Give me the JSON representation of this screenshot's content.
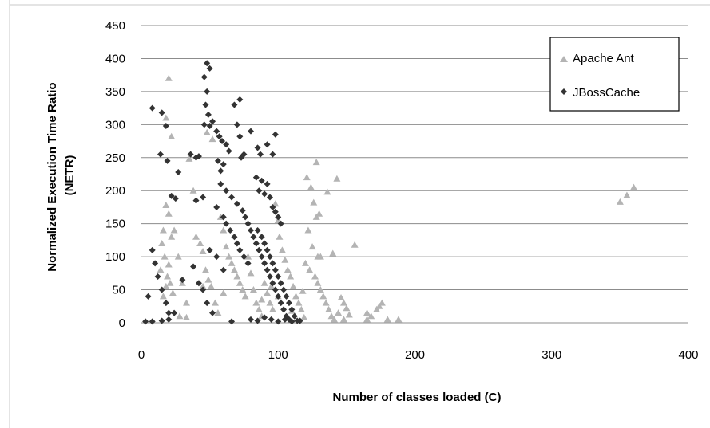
{
  "chart_data": {
    "type": "scatter",
    "title": "",
    "xlabel": "Number of classes  loaded (C)",
    "ylabel": "Normalized Execution Time Ratio (NETR)",
    "ylabel_lines": [
      "Normalized Execution Time Ratio",
      "(NETR)"
    ],
    "xlim": [
      0,
      400
    ],
    "ylim": [
      0,
      450
    ],
    "x_ticks": [
      "0",
      "100",
      "200",
      "300",
      "400"
    ],
    "y_ticks": [
      "0",
      "50",
      "100",
      "150",
      "200",
      "250",
      "300",
      "350",
      "400",
      "450"
    ],
    "grid": "horizontal",
    "legend_position": "top-right",
    "series": [
      {
        "name": "Apache Ant",
        "marker": "triangle",
        "color": "#b4b4b4",
        "points": [
          [
            20,
            370
          ],
          [
            18,
            310
          ],
          [
            22,
            282
          ],
          [
            35,
            248
          ],
          [
            38,
            200
          ],
          [
            48,
            288
          ],
          [
            52,
            278
          ],
          [
            18,
            178
          ],
          [
            20,
            165
          ],
          [
            16,
            140
          ],
          [
            22,
            130
          ],
          [
            15,
            120
          ],
          [
            17,
            100
          ],
          [
            20,
            88
          ],
          [
            14,
            80
          ],
          [
            19,
            70
          ],
          [
            21,
            60
          ],
          [
            18,
            55
          ],
          [
            23,
            45
          ],
          [
            16,
            40
          ],
          [
            24,
            140
          ],
          [
            27,
            100
          ],
          [
            30,
            60
          ],
          [
            33,
            30
          ],
          [
            28,
            10
          ],
          [
            33,
            8
          ],
          [
            40,
            130
          ],
          [
            43,
            120
          ],
          [
            45,
            108
          ],
          [
            47,
            80
          ],
          [
            49,
            65
          ],
          [
            51,
            55
          ],
          [
            54,
            30
          ],
          [
            56,
            15
          ],
          [
            58,
            160
          ],
          [
            60,
            140
          ],
          [
            62,
            115
          ],
          [
            64,
            100
          ],
          [
            66,
            90
          ],
          [
            68,
            80
          ],
          [
            70,
            70
          ],
          [
            72,
            60
          ],
          [
            74,
            50
          ],
          [
            76,
            40
          ],
          [
            78,
            100
          ],
          [
            80,
            75
          ],
          [
            82,
            50
          ],
          [
            84,
            30
          ],
          [
            86,
            20
          ],
          [
            88,
            10
          ],
          [
            90,
            60
          ],
          [
            92,
            45
          ],
          [
            94,
            30
          ],
          [
            96,
            20
          ],
          [
            98,
            180
          ],
          [
            100,
            155
          ],
          [
            101,
            130
          ],
          [
            103,
            110
          ],
          [
            105,
            95
          ],
          [
            107,
            80
          ],
          [
            109,
            70
          ],
          [
            111,
            55
          ],
          [
            113,
            40
          ],
          [
            115,
            30
          ],
          [
            117,
            20
          ],
          [
            119,
            8
          ],
          [
            121,
            220
          ],
          [
            124,
            205
          ],
          [
            126,
            182
          ],
          [
            128,
            160
          ],
          [
            122,
            140
          ],
          [
            125,
            115
          ],
          [
            129,
            100
          ],
          [
            120,
            90
          ],
          [
            123,
            80
          ],
          [
            127,
            70
          ],
          [
            129,
            60
          ],
          [
            131,
            50
          ],
          [
            133,
            40
          ],
          [
            135,
            30
          ],
          [
            137,
            20
          ],
          [
            139,
            10
          ],
          [
            141,
            5
          ],
          [
            128,
            243
          ],
          [
            143,
            218
          ],
          [
            136,
            198
          ],
          [
            130,
            165
          ],
          [
            156,
            118
          ],
          [
            140,
            105
          ],
          [
            131,
            100
          ],
          [
            146,
            38
          ],
          [
            148,
            30
          ],
          [
            150,
            22
          ],
          [
            152,
            12
          ],
          [
            148,
            5
          ],
          [
            144,
            15
          ],
          [
            165,
            15
          ],
          [
            168,
            10
          ],
          [
            172,
            20
          ],
          [
            174,
            25
          ],
          [
            176,
            30
          ],
          [
            180,
            5
          ],
          [
            188,
            5
          ],
          [
            165,
            5
          ],
          [
            350,
            183
          ],
          [
            355,
            193
          ],
          [
            360,
            205
          ],
          [
            100,
            40
          ],
          [
            95,
            55
          ],
          [
            60,
            45
          ],
          [
            45,
            55
          ],
          [
            88,
            35
          ],
          [
            110,
            18
          ],
          [
            118,
            48
          ]
        ]
      },
      {
        "name": "JBossCache",
        "marker": "diamond",
        "color": "#333333",
        "points": [
          [
            48,
            393
          ],
          [
            50,
            385
          ],
          [
            46,
            372
          ],
          [
            48,
            350
          ],
          [
            47,
            330
          ],
          [
            49,
            315
          ],
          [
            46,
            300
          ],
          [
            50,
            298
          ],
          [
            52,
            305
          ],
          [
            8,
            325
          ],
          [
            15,
            318
          ],
          [
            18,
            298
          ],
          [
            14,
            255
          ],
          [
            19,
            245
          ],
          [
            27,
            228
          ],
          [
            22,
            192
          ],
          [
            25,
            188
          ],
          [
            42,
            252
          ],
          [
            40,
            250
          ],
          [
            45,
            190
          ],
          [
            55,
            290
          ],
          [
            57,
            282
          ],
          [
            59,
            275
          ],
          [
            62,
            270
          ],
          [
            64,
            260
          ],
          [
            56,
            245
          ],
          [
            60,
            240
          ],
          [
            58,
            230
          ],
          [
            68,
            330
          ],
          [
            72,
            338
          ],
          [
            70,
            300
          ],
          [
            72,
            282
          ],
          [
            75,
            255
          ],
          [
            73,
            250
          ],
          [
            80,
            290
          ],
          [
            85,
            265
          ],
          [
            87,
            255
          ],
          [
            92,
            270
          ],
          [
            98,
            285
          ],
          [
            96,
            255
          ],
          [
            58,
            210
          ],
          [
            62,
            200
          ],
          [
            66,
            190
          ],
          [
            70,
            180
          ],
          [
            74,
            170
          ],
          [
            76,
            160
          ],
          [
            78,
            150
          ],
          [
            80,
            140
          ],
          [
            82,
            130
          ],
          [
            84,
            120
          ],
          [
            86,
            110
          ],
          [
            88,
            100
          ],
          [
            90,
            90
          ],
          [
            92,
            80
          ],
          [
            94,
            70
          ],
          [
            96,
            60
          ],
          [
            98,
            50
          ],
          [
            100,
            40
          ],
          [
            102,
            30
          ],
          [
            104,
            20
          ],
          [
            106,
            10
          ],
          [
            108,
            5
          ],
          [
            84,
            220
          ],
          [
            88,
            215
          ],
          [
            92,
            210
          ],
          [
            86,
            200
          ],
          [
            90,
            195
          ],
          [
            94,
            190
          ],
          [
            96,
            175
          ],
          [
            98,
            168
          ],
          [
            100,
            160
          ],
          [
            102,
            150
          ],
          [
            85,
            140
          ],
          [
            88,
            130
          ],
          [
            90,
            120
          ],
          [
            92,
            110
          ],
          [
            94,
            100
          ],
          [
            96,
            90
          ],
          [
            98,
            80
          ],
          [
            100,
            70
          ],
          [
            102,
            60
          ],
          [
            104,
            50
          ],
          [
            106,
            40
          ],
          [
            108,
            30
          ],
          [
            110,
            20
          ],
          [
            112,
            10
          ],
          [
            114,
            3
          ],
          [
            116,
            3
          ],
          [
            80,
            5
          ],
          [
            85,
            3
          ],
          [
            90,
            8
          ],
          [
            95,
            5
          ],
          [
            100,
            2
          ],
          [
            105,
            5
          ],
          [
            110,
            2
          ],
          [
            66,
            2
          ],
          [
            50,
            110
          ],
          [
            55,
            100
          ],
          [
            60,
            80
          ],
          [
            45,
            50
          ],
          [
            48,
            30
          ],
          [
            52,
            15
          ],
          [
            36,
            255
          ],
          [
            40,
            185
          ],
          [
            55,
            175
          ],
          [
            60,
            160
          ],
          [
            62,
            150
          ],
          [
            65,
            140
          ],
          [
            68,
            130
          ],
          [
            70,
            120
          ],
          [
            72,
            110
          ],
          [
            75,
            100
          ],
          [
            78,
            90
          ],
          [
            8,
            110
          ],
          [
            10,
            90
          ],
          [
            12,
            70
          ],
          [
            15,
            50
          ],
          [
            18,
            30
          ],
          [
            20,
            15
          ],
          [
            5,
            40
          ],
          [
            8,
            2
          ],
          [
            15,
            3
          ],
          [
            3,
            2
          ],
          [
            20,
            5
          ],
          [
            24,
            15
          ],
          [
            30,
            65
          ],
          [
            38,
            85
          ],
          [
            42,
            60
          ]
        ]
      }
    ]
  }
}
